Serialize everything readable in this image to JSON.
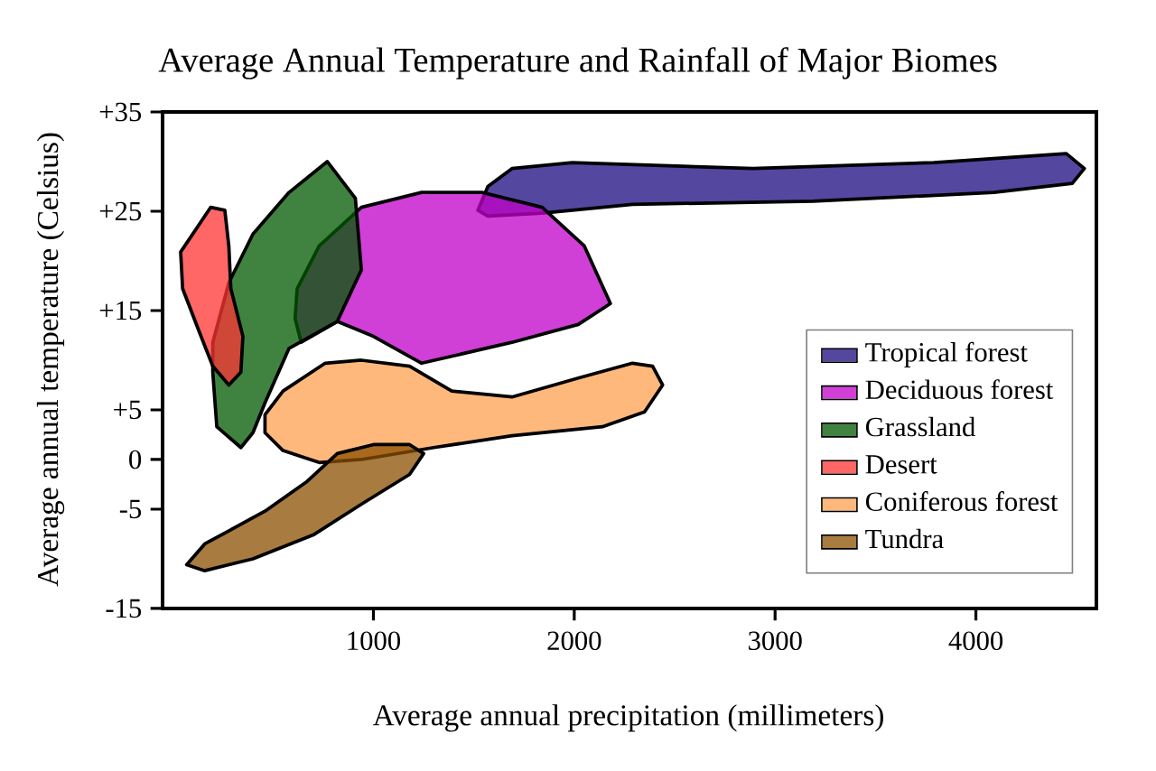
{
  "chart_data": {
    "type": "area",
    "title": "Average Annual Temperature and Rainfall of Major Biomes",
    "xlabel": "Average annual precipitation (millimeters)",
    "ylabel": "Average annual temperature (Celsius)",
    "xlim": [
      -50,
      4600
    ],
    "xticks": [
      1000,
      2000,
      3000,
      4000
    ],
    "ylim": [
      -15,
      35
    ],
    "yticks": [
      {
        "value": 35,
        "label": "+35"
      },
      {
        "value": 25,
        "label": "+25"
      },
      {
        "value": 15,
        "label": "+15"
      },
      {
        "value": 5,
        "label": "+5"
      },
      0,
      -5,
      -15
    ],
    "legend": "right",
    "series": [
      {
        "name": "Tropical forest",
        "color": "#1b0a80",
        "x": [
          1520,
          1570,
          1690,
          1990,
          2890,
          3790,
          4450,
          4540,
          4480,
          4090,
          3190,
          2290,
          1840,
          1570
        ],
        "values": [
          25.1,
          27.5,
          29.3,
          29.9,
          29.3,
          29.9,
          30.8,
          29.3,
          27.8,
          26.9,
          26.0,
          25.7,
          24.8,
          24.5
        ]
      },
      {
        "name": "Deciduous forest",
        "color": "#c000c8",
        "x": [
          610,
          620,
          730,
          940,
          1240,
          1540,
          1840,
          2050,
          2180,
          2020,
          1690,
          1240,
          1000,
          820,
          640
        ],
        "values": [
          14.2,
          17.2,
          21.5,
          25.4,
          26.9,
          26.9,
          25.4,
          21.5,
          15.7,
          13.6,
          11.8,
          9.7,
          12.4,
          13.9,
          11.8
        ]
      },
      {
        "name": "Grassland",
        "color": "#005a00",
        "x": [
          200,
          220,
          340,
          400,
          460,
          580,
          820,
          940,
          910,
          770,
          580,
          400,
          280,
          200
        ],
        "values": [
          8.8,
          3.3,
          1.2,
          2.7,
          5.7,
          11.2,
          13.9,
          19.1,
          26.3,
          30.0,
          26.9,
          22.7,
          17.8,
          11.8
        ]
      },
      {
        "name": "Desert",
        "color": "#ff3333",
        "x": [
          40,
          190,
          260,
          280,
          290,
          350,
          340,
          280,
          200,
          130,
          50
        ],
        "values": [
          20.9,
          25.4,
          25.1,
          21.5,
          17.2,
          12.4,
          8.8,
          7.5,
          9.4,
          13.0,
          17.2
        ]
      },
      {
        "name": "Coniferous forest",
        "color": "#ffa050",
        "x": [
          460,
          550,
          730,
          940,
          1300,
          1690,
          2140,
          2350,
          2440,
          2390,
          2290,
          2020,
          1690,
          1390,
          1180,
          940,
          760,
          550,
          460
        ],
        "values": [
          2.7,
          0.9,
          -0.3,
          0.0,
          1.2,
          2.4,
          3.3,
          4.8,
          7.5,
          9.4,
          9.7,
          8.2,
          6.3,
          6.9,
          9.4,
          10.0,
          9.7,
          6.9,
          4.5
        ]
      },
      {
        "name": "Tundra",
        "color": "#8b4f00",
        "x": [
          70,
          160,
          400,
          700,
          940,
          1180,
          1250,
          1180,
          1000,
          820,
          670,
          460,
          160
        ],
        "values": [
          -10.6,
          -11.2,
          -10.0,
          -7.6,
          -4.5,
          -1.5,
          0.6,
          1.5,
          1.5,
          0.6,
          -2.2,
          -5.2,
          -8.5
        ]
      }
    ]
  }
}
